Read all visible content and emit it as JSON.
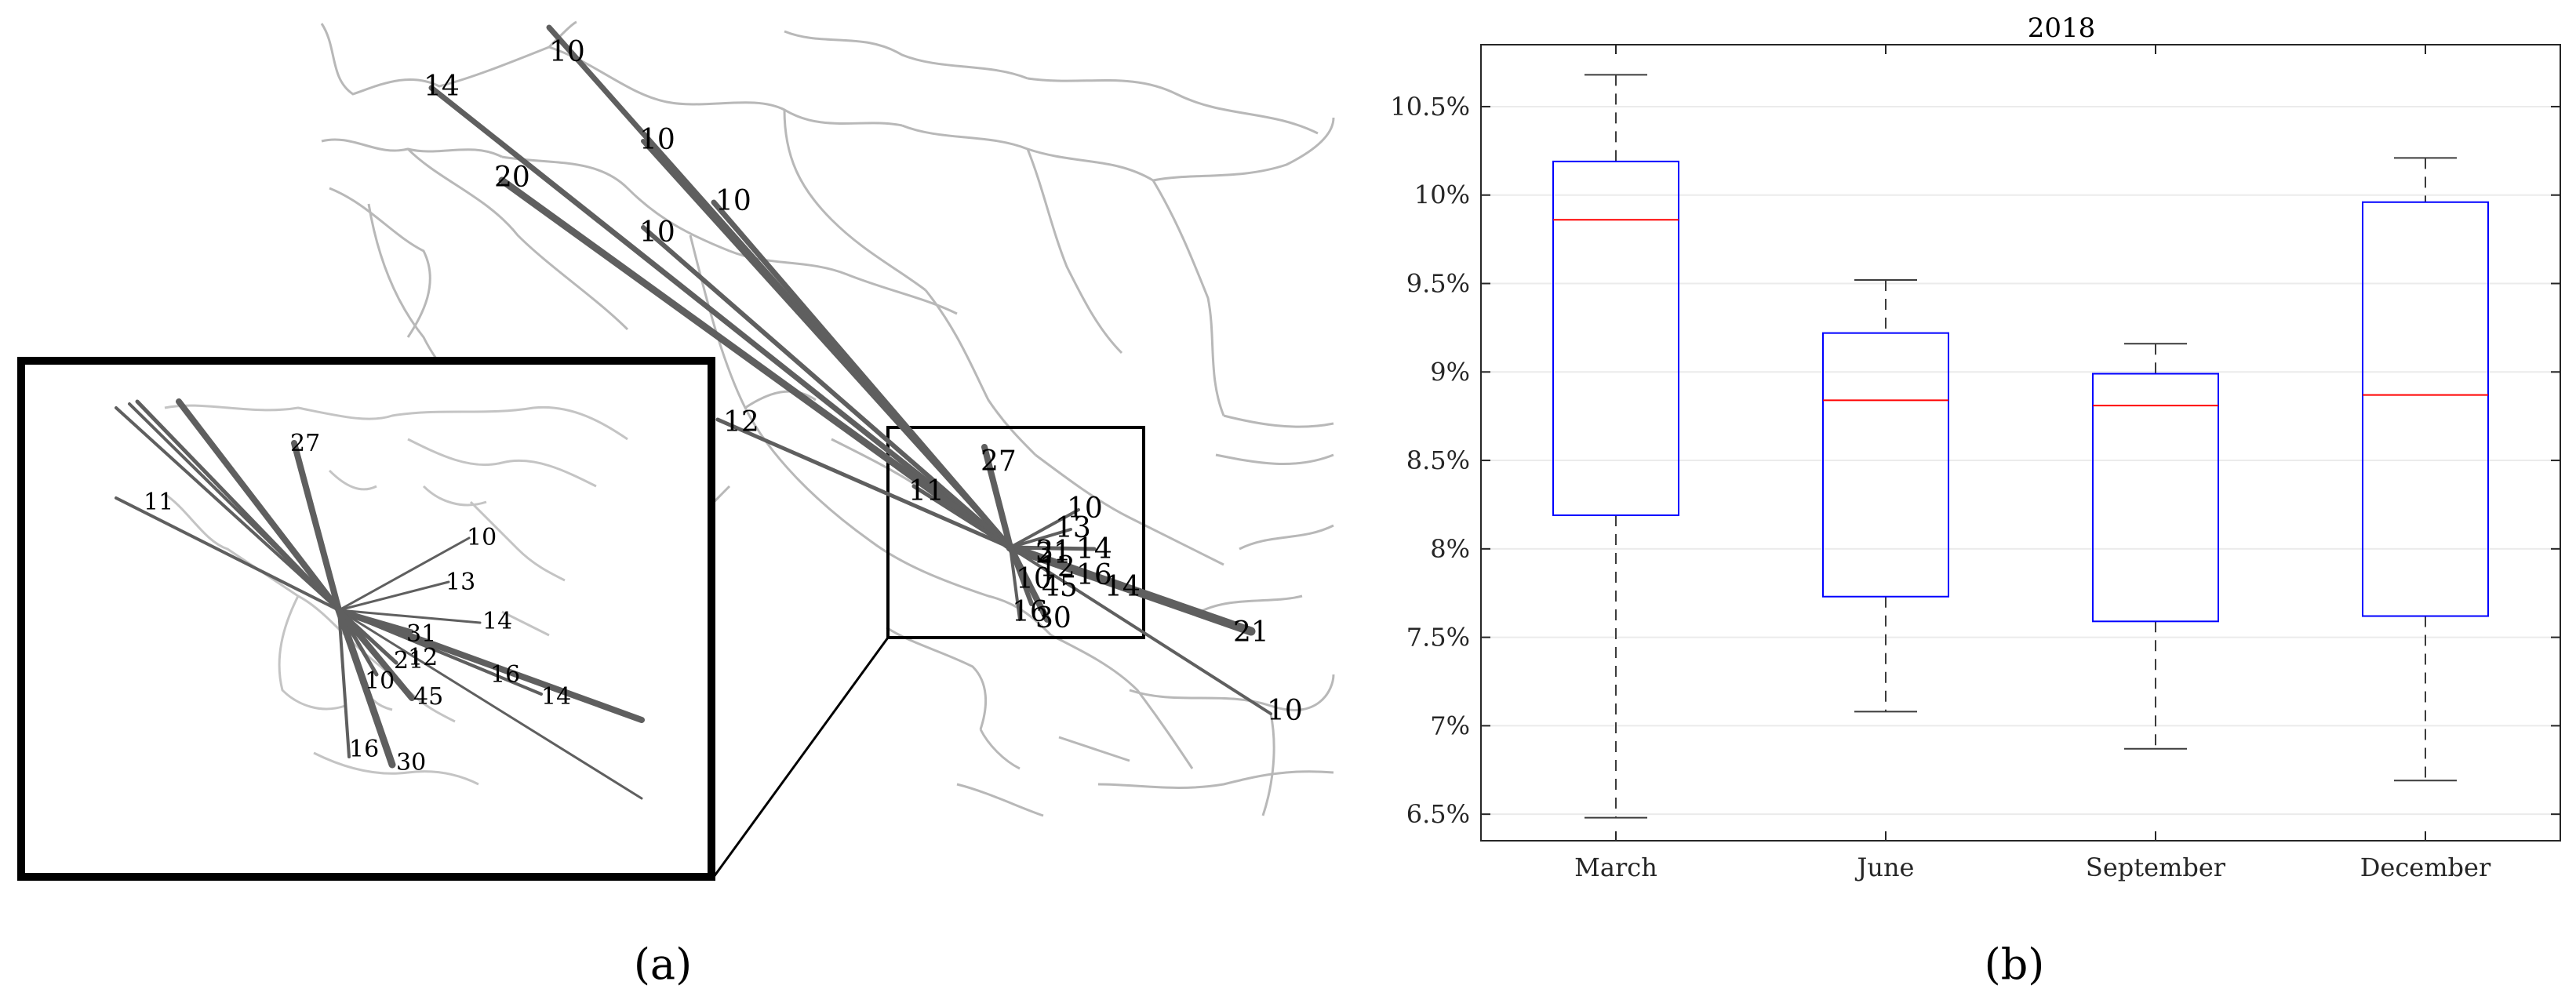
{
  "panel_a": {
    "caption": "(a)",
    "main_labels": [
      "10",
      "14",
      "10",
      "20",
      "10",
      "10",
      "12",
      "11",
      "27",
      "10",
      "13",
      "14",
      "31",
      "12",
      "16",
      "14",
      "10",
      "21",
      "45",
      "16",
      "30",
      "21",
      "10"
    ],
    "inset_labels": [
      "27",
      "11",
      "10",
      "13",
      "14",
      "31",
      "21",
      "12",
      "10",
      "45",
      "16",
      "14",
      "16",
      "30"
    ]
  },
  "panel_b": {
    "caption": "(b)"
  },
  "chart_data": [
    {
      "type": "boxplot",
      "title": "2018",
      "xlabel": "",
      "ylabel": "",
      "categories": [
        "March",
        "June",
        "September",
        "December"
      ],
      "boxes": [
        {
          "category": "March",
          "whisker_low": 6.48,
          "q1": 8.19,
          "median": 9.86,
          "q3": 10.19,
          "whisker_high": 10.68
        },
        {
          "category": "June",
          "whisker_low": 7.08,
          "q1": 7.73,
          "median": 8.84,
          "q3": 9.22,
          "whisker_high": 9.52
        },
        {
          "category": "September",
          "whisker_low": 6.87,
          "q1": 7.59,
          "median": 8.81,
          "q3": 8.99,
          "whisker_high": 9.16
        },
        {
          "category": "December",
          "whisker_low": 6.69,
          "q1": 7.62,
          "median": 8.87,
          "q3": 9.96,
          "whisker_high": 10.21
        }
      ],
      "yticks": [
        "6.5%",
        "7%",
        "7.5%",
        "8%",
        "8.5%",
        "9%",
        "9.5%",
        "10%",
        "10.5%"
      ],
      "ytick_values": [
        6.5,
        7.0,
        7.5,
        8.0,
        8.5,
        9.0,
        9.5,
        10.0,
        10.5
      ],
      "ylim": [
        6.35,
        10.85
      ],
      "grid": true,
      "box_color": "#0000ff",
      "median_color": "#ff0000"
    }
  ]
}
